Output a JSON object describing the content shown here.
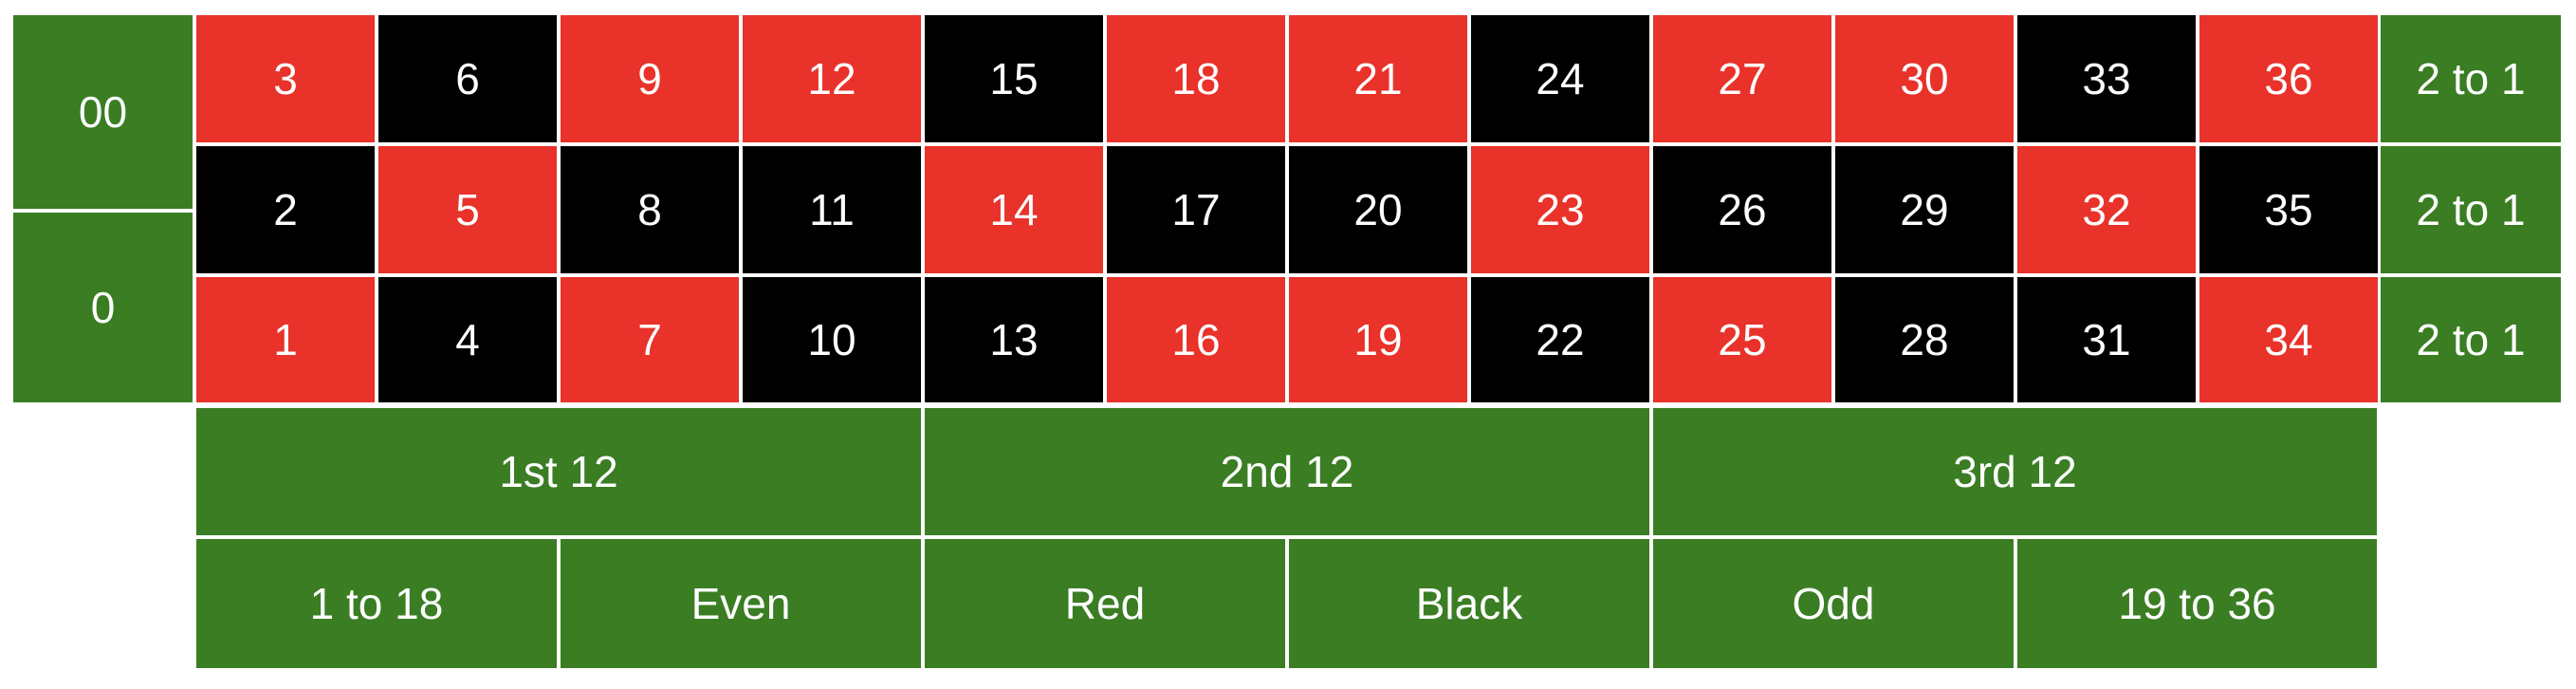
{
  "colors": {
    "red": "#e8322a",
    "black": "#000000",
    "green": "#3a7d23",
    "text": "#ffffff",
    "divider": "#ffffff"
  },
  "zeros": [
    {
      "label": "00",
      "color": "green"
    },
    {
      "label": "0",
      "color": "green"
    }
  ],
  "number_grid": [
    [
      {
        "label": "3",
        "color": "red"
      },
      {
        "label": "6",
        "color": "black"
      },
      {
        "label": "9",
        "color": "red"
      },
      {
        "label": "12",
        "color": "red"
      },
      {
        "label": "15",
        "color": "black"
      },
      {
        "label": "18",
        "color": "red"
      },
      {
        "label": "21",
        "color": "red"
      },
      {
        "label": "24",
        "color": "black"
      },
      {
        "label": "27",
        "color": "red"
      },
      {
        "label": "30",
        "color": "red"
      },
      {
        "label": "33",
        "color": "black"
      },
      {
        "label": "36",
        "color": "red"
      }
    ],
    [
      {
        "label": "2",
        "color": "black"
      },
      {
        "label": "5",
        "color": "red"
      },
      {
        "label": "8",
        "color": "black"
      },
      {
        "label": "11",
        "color": "black"
      },
      {
        "label": "14",
        "color": "red"
      },
      {
        "label": "17",
        "color": "black"
      },
      {
        "label": "20",
        "color": "black"
      },
      {
        "label": "23",
        "color": "red"
      },
      {
        "label": "26",
        "color": "black"
      },
      {
        "label": "29",
        "color": "black"
      },
      {
        "label": "32",
        "color": "red"
      },
      {
        "label": "35",
        "color": "black"
      }
    ],
    [
      {
        "label": "1",
        "color": "red"
      },
      {
        "label": "4",
        "color": "black"
      },
      {
        "label": "7",
        "color": "red"
      },
      {
        "label": "10",
        "color": "black"
      },
      {
        "label": "13",
        "color": "black"
      },
      {
        "label": "16",
        "color": "red"
      },
      {
        "label": "19",
        "color": "red"
      },
      {
        "label": "22",
        "color": "black"
      },
      {
        "label": "25",
        "color": "red"
      },
      {
        "label": "28",
        "color": "black"
      },
      {
        "label": "31",
        "color": "black"
      },
      {
        "label": "34",
        "color": "red"
      }
    ]
  ],
  "column_bets": [
    "2 to 1",
    "2 to 1",
    "2 to 1"
  ],
  "dozens": [
    "1st 12",
    "2nd 12",
    "3rd 12"
  ],
  "outside_bets": [
    "1 to 18",
    "Even",
    "Red",
    "Black",
    "Odd",
    "19 to 36"
  ]
}
